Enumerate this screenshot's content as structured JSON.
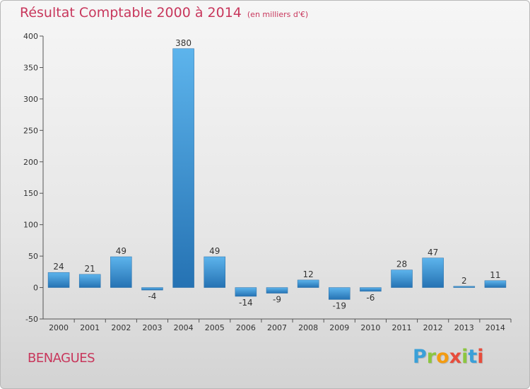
{
  "chart_data": {
    "type": "bar",
    "title": "Résultat Comptable 2000 à 2014",
    "subtitle": "(en milliers d'€)",
    "categories": [
      "2000",
      "2001",
      "2002",
      "2003",
      "2004",
      "2005",
      "2006",
      "2007",
      "2008",
      "2009",
      "2010",
      "2011",
      "2012",
      "2013",
      "2014"
    ],
    "values": [
      24,
      21,
      49,
      -4,
      380,
      49,
      -14,
      -9,
      12,
      -19,
      -6,
      28,
      47,
      2,
      11
    ],
    "data_labels": [
      "24",
      "21",
      "49",
      "-4",
      "380",
      "49",
      "-14",
      "-9",
      "12",
      "-19",
      "-6",
      "28",
      "47",
      "2",
      "11"
    ],
    "yticks": [
      -50,
      0,
      50,
      100,
      150,
      200,
      250,
      300,
      350,
      400
    ],
    "ylim": [
      -50,
      400
    ],
    "xlabel": "",
    "ylabel": "",
    "grid": false,
    "legend": "none",
    "bar_color": "#3d95d6"
  },
  "footer": {
    "commune": "BENAGUES"
  },
  "brand": {
    "letters": [
      "P",
      "r",
      "o",
      "x",
      "i",
      "t",
      "i"
    ],
    "colors": [
      "#3aa0d8",
      "#8cc63f",
      "#f39c12",
      "#e74c3c",
      "#8cc63f",
      "#3aa0d8",
      "#e74c3c"
    ]
  }
}
